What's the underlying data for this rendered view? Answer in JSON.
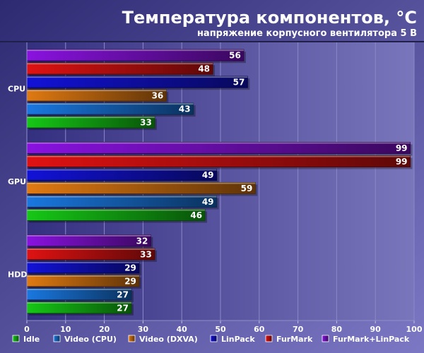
{
  "chart_data": {
    "type": "bar",
    "orientation": "horizontal",
    "title": "Температура компонентов, °C",
    "subtitle": "напряжение корпусного вентилятора 5 В",
    "categories": [
      "CPU",
      "GPU",
      "HDD"
    ],
    "xlim": [
      0,
      100
    ],
    "xticks": [
      0,
      10,
      20,
      30,
      40,
      50,
      60,
      70,
      80,
      90,
      100
    ],
    "grid": true,
    "legend_position": "bottom",
    "series": [
      {
        "name": "Idle",
        "color": "#16c816",
        "values": [
          33,
          46,
          27
        ]
      },
      {
        "name": "Video (CPU)",
        "color": "#1a78e0",
        "values": [
          43,
          49,
          27
        ]
      },
      {
        "name": "Video (DXVA)",
        "color": "#e07a12",
        "values": [
          36,
          59,
          29
        ]
      },
      {
        "name": "LinPack",
        "color": "#1212d8",
        "values": [
          57,
          49,
          29
        ]
      },
      {
        "name": "FurMark",
        "color": "#e01212",
        "values": [
          48,
          99,
          33
        ]
      },
      {
        "name": "FurMark+LinPack",
        "color": "#8a12e0",
        "values": [
          56,
          99,
          32
        ]
      }
    ]
  }
}
